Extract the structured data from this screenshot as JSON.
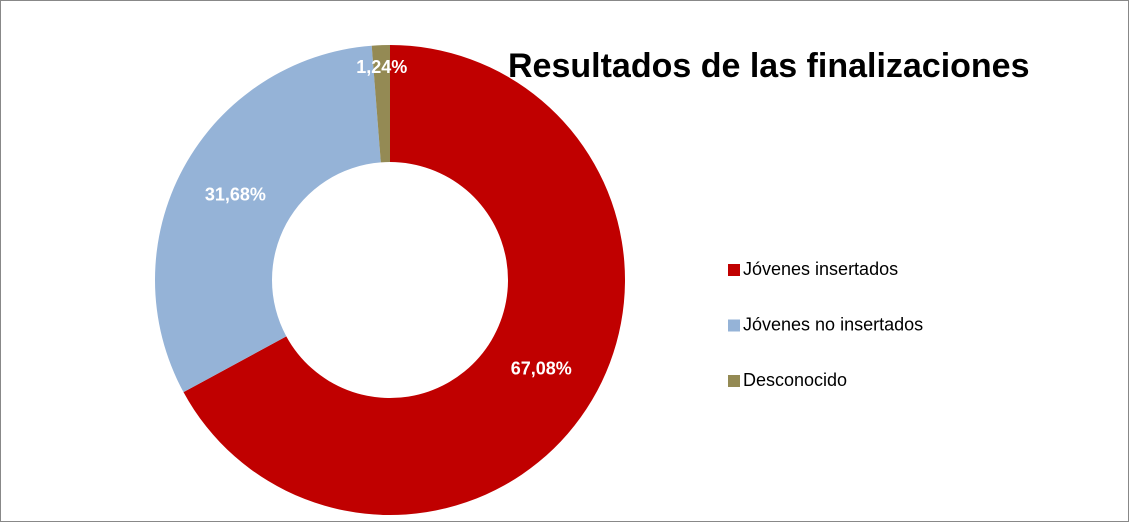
{
  "chart_data": {
    "type": "donut",
    "title": "Resultados de las finalizaciones",
    "categories": [
      "Jóvenes insertados",
      "Jóvenes no insertados",
      "Desconocido"
    ],
    "values": [
      67.08,
      31.68,
      1.24
    ],
    "value_labels": [
      "67,08%",
      "31,68%",
      "1,24%"
    ],
    "colors": [
      "#c00000",
      "#95b3d7",
      "#948a54"
    ],
    "legend": "right"
  }
}
